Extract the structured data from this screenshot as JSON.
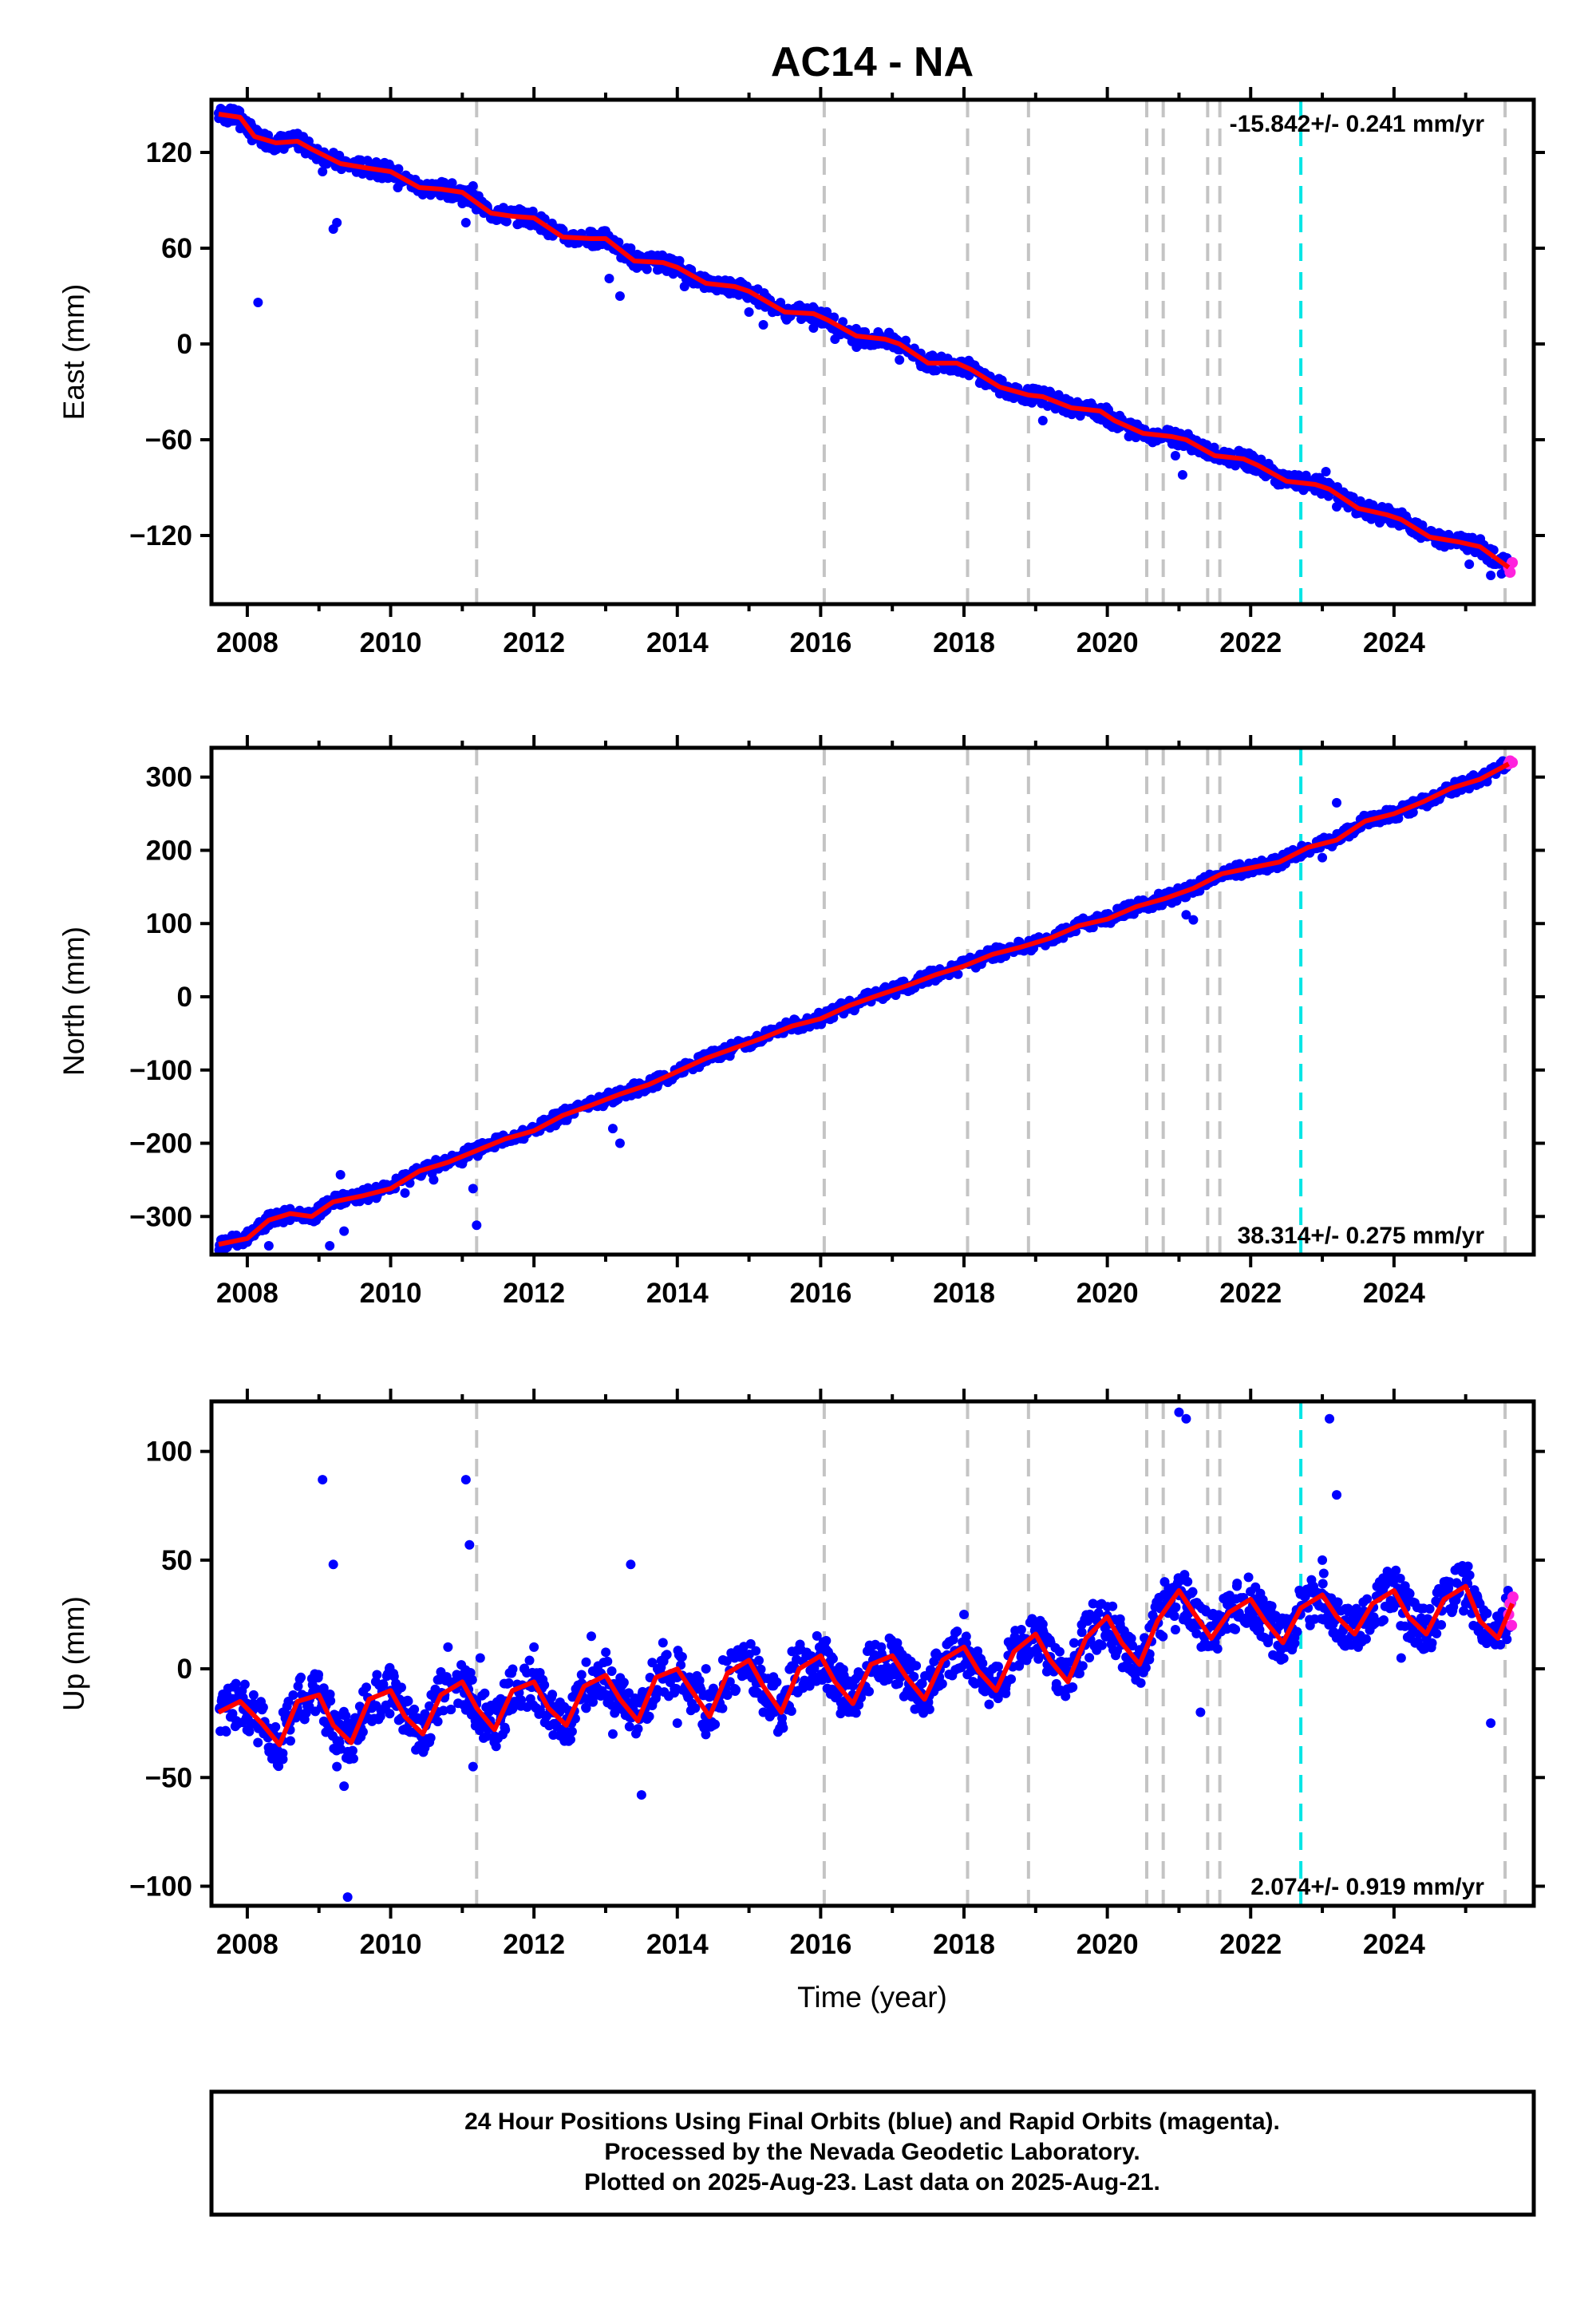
{
  "title": "AC14 - NA",
  "colors": {
    "final_orbits": "#0000ff",
    "rapid_orbits": "#ff22dd",
    "model": "#ff0000",
    "event_line": "#c4c4c4",
    "highlight_event": "#00e5e5"
  },
  "x_axis": {
    "label": "Time (year)",
    "range": [
      2007.5,
      2025.95
    ],
    "ticks": [
      "2008",
      "2010",
      "2012",
      "2014",
      "2016",
      "2018",
      "2020",
      "2022",
      "2024"
    ]
  },
  "event_lines": [
    2011.2,
    2016.05,
    2018.05,
    2018.9,
    2020.55,
    2020.78,
    2021.4,
    2021.57,
    2025.55
  ],
  "highlight_event_line": 2022.7,
  "footer": {
    "line1": "24 Hour Positions Using Final Orbits (blue) and Rapid Orbits (magenta).",
    "line2": "Processed by the Nevada Geodetic Laboratory.",
    "line3": "Plotted on 2025-Aug-23. Last data on 2025-Aug-21."
  },
  "chart_data": [
    {
      "type": "scatter",
      "component": "East",
      "ylabel": "East (mm)",
      "ylim": [
        -163,
        153
      ],
      "yticks": [
        120,
        60,
        0,
        -60,
        -120
      ],
      "yticks_labels": [
        "120",
        "60",
        "0",
        "−60",
        "−120"
      ],
      "rate": "-15.842+/- 0.241 mm/yr",
      "rate_position": "top-right",
      "model_x": [
        2007.6,
        2007.9,
        2008.1,
        2008.4,
        2008.7,
        2008.9,
        2009.3,
        2009.7,
        2010.0,
        2010.4,
        2010.7,
        2011.0,
        2011.4,
        2011.7,
        2012.0,
        2012.4,
        2012.8,
        2013.0,
        2013.4,
        2013.8,
        2014.0,
        2014.4,
        2014.8,
        2015.0,
        2015.5,
        2015.9,
        2016.1,
        2016.5,
        2016.9,
        2017.1,
        2017.5,
        2017.9,
        2018.1,
        2018.5,
        2018.9,
        2019.1,
        2019.5,
        2019.9,
        2020.1,
        2020.5,
        2020.9,
        2021.1,
        2021.5,
        2021.9,
        2022.1,
        2022.5,
        2022.9,
        2023.1,
        2023.5,
        2023.9,
        2024.1,
        2024.5,
        2024.9,
        2025.2,
        2025.6
      ],
      "model_y": [
        144,
        142,
        130,
        126,
        127,
        122,
        113,
        110,
        108,
        98,
        97,
        95,
        82,
        80,
        79,
        67,
        66,
        66,
        52,
        51,
        48,
        38,
        36,
        33,
        20,
        19,
        15,
        5,
        3,
        0,
        -12,
        -12,
        -16,
        -27,
        -32,
        -33,
        -40,
        -42,
        -48,
        -56,
        -58,
        -60,
        -70,
        -72,
        -76,
        -86,
        -88,
        -91,
        -103,
        -107,
        -110,
        -121,
        -124,
        -127,
        -140
      ],
      "final_x": [
        2007.65,
        2007.75,
        2007.9,
        2008.15,
        2008.8,
        2009.05,
        2009.2,
        2009.25,
        2009.5,
        2009.8,
        2010.1,
        2010.4,
        2010.7,
        2011.0,
        2011.05,
        2011.15,
        2011.3,
        2011.5,
        2011.8,
        2012.2,
        2012.6,
        2012.9,
        2013.05,
        2013.2,
        2013.35,
        2013.6,
        2013.9,
        2014.1,
        2014.4,
        2014.7,
        2015.0,
        2015.2,
        2015.5,
        2015.8,
        2015.9,
        2016.2,
        2016.5,
        2016.8,
        2017.1,
        2017.4,
        2017.7,
        2018.0,
        2018.3,
        2018.6,
        2018.9,
        2019.1,
        2019.4,
        2019.7,
        2020.0,
        2020.3,
        2020.6,
        2020.95,
        2021.05,
        2021.2,
        2021.5,
        2021.8,
        2022.6,
        2022.9,
        2023.05,
        2023.2,
        2023.5,
        2023.8,
        2024.1,
        2024.4,
        2024.7,
        2024.9,
        2025.05,
        2025.2,
        2025.35,
        2025.5
      ],
      "final_y": [
        146,
        140,
        135,
        26,
        126,
        108,
        72,
        76,
        113,
        114,
        98,
        100,
        97,
        88,
        76,
        99,
        82,
        84,
        80,
        68,
        68,
        65,
        41,
        30,
        60,
        52,
        50,
        36,
        40,
        34,
        20,
        12,
        19,
        17,
        10,
        3,
        -2,
        0,
        -10,
        -14,
        -12,
        -18,
        -26,
        -30,
        -36,
        -48,
        -42,
        -42,
        -50,
        -58,
        -58,
        -70,
        -82,
        -64,
        -72,
        -75,
        -88,
        -92,
        -80,
        -102,
        -106,
        -112,
        -110,
        -120,
        -124,
        -125,
        -138,
        -128,
        -145,
        -144
      ],
      "rapid_x": [
        2025.6,
        2025.62,
        2025.65
      ],
      "rapid_y": [
        -140,
        -143,
        -137
      ]
    },
    {
      "type": "scatter",
      "component": "North",
      "ylabel": "North (mm)",
      "ylim": [
        -352,
        340
      ],
      "yticks": [
        300,
        200,
        100,
        0,
        -100,
        -200,
        -300
      ],
      "yticks_labels": [
        "300",
        "200",
        "100",
        "0",
        "−100",
        "−200",
        "−300"
      ],
      "rate": "38.314+/- 0.275 mm/yr",
      "rate_position": "bottom-right",
      "model_x": [
        2007.6,
        2008.0,
        2008.3,
        2008.6,
        2008.9,
        2009.2,
        2009.6,
        2010.0,
        2010.4,
        2010.8,
        2011.2,
        2011.6,
        2012.0,
        2012.4,
        2012.8,
        2013.2,
        2013.6,
        2014.0,
        2014.4,
        2014.8,
        2015.2,
        2015.6,
        2016.0,
        2016.4,
        2016.8,
        2017.2,
        2017.6,
        2018.0,
        2018.4,
        2018.8,
        2019.2,
        2019.6,
        2020.0,
        2020.4,
        2020.8,
        2021.2,
        2021.6,
        2022.0,
        2022.4,
        2022.8,
        2023.2,
        2023.6,
        2024.0,
        2024.4,
        2024.8,
        2025.2,
        2025.6
      ],
      "model_y": [
        -338,
        -330,
        -305,
        -296,
        -300,
        -280,
        -272,
        -262,
        -238,
        -226,
        -210,
        -194,
        -183,
        -162,
        -148,
        -133,
        -120,
        -102,
        -84,
        -70,
        -56,
        -40,
        -30,
        -12,
        2,
        15,
        30,
        42,
        58,
        68,
        80,
        97,
        106,
        123,
        134,
        148,
        168,
        176,
        184,
        204,
        214,
        240,
        250,
        266,
        285,
        297,
        318
      ],
      "final_x": [
        2007.7,
        2008.0,
        2008.3,
        2009.15,
        2009.3,
        2009.35,
        2009.8,
        2010.2,
        2010.6,
        2011.0,
        2011.15,
        2011.2,
        2011.4,
        2011.8,
        2012.4,
        2012.8,
        2013.1,
        2013.2,
        2013.5,
        2013.9,
        2014.3,
        2014.8,
        2015.3,
        2015.8,
        2016.0,
        2016.5,
        2017.0,
        2017.5,
        2018.0,
        2018.5,
        2018.9,
        2019.3,
        2019.8,
        2020.2,
        2020.5,
        2020.9,
        2021.1,
        2021.2,
        2021.5,
        2022.8,
        2023.0,
        2023.2,
        2023.6,
        2024.2,
        2024.8,
        2025.2,
        2025.5
      ],
      "final_y": [
        -340,
        -335,
        -340,
        -340,
        -243,
        -320,
        -275,
        -268,
        -250,
        -228,
        -262,
        -312,
        -205,
        -190,
        -155,
        -140,
        -180,
        -200,
        -120,
        -110,
        -90,
        -68,
        -50,
        -35,
        -32,
        -10,
        5,
        20,
        45,
        60,
        72,
        80,
        100,
        110,
        132,
        128,
        112,
        105,
        166,
        205,
        190,
        265,
        240,
        262,
        285,
        300,
        318
      ],
      "rapid_x": [
        2025.6,
        2025.62,
        2025.65
      ],
      "rapid_y": [
        318,
        322,
        320
      ]
    },
    {
      "type": "scatter",
      "component": "Up",
      "ylabel": "Up (mm)",
      "ylim": [
        -109,
        123
      ],
      "yticks": [
        100,
        50,
        0,
        -50,
        -100
      ],
      "yticks_labels": [
        "100",
        "50",
        "0",
        "−50",
        "−100"
      ],
      "rate": "2.074+/- 0.919 mm/yr",
      "rate_position": "bottom-right",
      "model_x": [
        2007.6,
        2007.9,
        2008.2,
        2008.45,
        2008.7,
        2009.0,
        2009.2,
        2009.45,
        2009.7,
        2010.0,
        2010.2,
        2010.45,
        2010.7,
        2011.0,
        2011.2,
        2011.45,
        2011.7,
        2012.0,
        2012.2,
        2012.45,
        2012.7,
        2013.0,
        2013.2,
        2013.45,
        2013.7,
        2014.0,
        2014.2,
        2014.45,
        2014.7,
        2015.0,
        2015.2,
        2015.45,
        2015.7,
        2016.0,
        2016.2,
        2016.45,
        2016.7,
        2017.0,
        2017.2,
        2017.45,
        2017.7,
        2018.0,
        2018.2,
        2018.45,
        2018.7,
        2019.0,
        2019.2,
        2019.45,
        2019.7,
        2020.0,
        2020.2,
        2020.45,
        2020.7,
        2021.0,
        2021.2,
        2021.45,
        2021.7,
        2022.0,
        2022.2,
        2022.45,
        2022.7,
        2023.0,
        2023.2,
        2023.45,
        2023.7,
        2024.0,
        2024.2,
        2024.45,
        2024.7,
        2025.0,
        2025.2,
        2025.45,
        2025.65
      ],
      "model_y": [
        -20,
        -15,
        -25,
        -35,
        -15,
        -12,
        -26,
        -34,
        -14,
        -10,
        -22,
        -30,
        -12,
        -6,
        -18,
        -28,
        -10,
        -6,
        -18,
        -26,
        -8,
        -3,
        -14,
        -24,
        -4,
        0,
        -10,
        -22,
        -2,
        4,
        -8,
        -20,
        0,
        6,
        -6,
        -16,
        2,
        6,
        -4,
        -14,
        4,
        10,
        -1,
        -10,
        8,
        16,
        4,
        -6,
        14,
        24,
        12,
        2,
        22,
        36,
        26,
        14,
        26,
        32,
        22,
        12,
        28,
        34,
        24,
        16,
        30,
        36,
        24,
        16,
        32,
        38,
        22,
        14,
        30
      ],
      "final_x": [
        2007.7,
        2008.0,
        2008.5,
        2009.05,
        2009.2,
        2009.25,
        2009.35,
        2009.4,
        2009.6,
        2010.0,
        2010.5,
        2010.8,
        2011.05,
        2011.1,
        2011.15,
        2011.25,
        2011.6,
        2012.0,
        2012.5,
        2012.8,
        2013.1,
        2013.35,
        2013.5,
        2013.8,
        2014.0,
        2014.4,
        2014.8,
        2015.2,
        2015.6,
        2016.0,
        2016.3,
        2016.7,
        2017.1,
        2017.5,
        2018.0,
        2018.4,
        2018.8,
        2019.1,
        2019.5,
        2019.8,
        2020.1,
        2020.5,
        2020.8,
        2020.95,
        2021.0,
        2021.1,
        2021.3,
        2021.5,
        2021.7,
        2022.5,
        2022.8,
        2023.0,
        2023.1,
        2023.2,
        2023.5,
        2023.8,
        2024.1,
        2024.4,
        2024.7,
        2025.0,
        2025.2,
        2025.35,
        2025.5
      ],
      "final_y": [
        -18,
        -16,
        -20,
        87,
        48,
        -45,
        -54,
        -105,
        -20,
        -10,
        -25,
        10,
        87,
        57,
        -45,
        5,
        -28,
        10,
        -20,
        15,
        -30,
        48,
        -58,
        12,
        -25,
        0,
        5,
        -20,
        8,
        3,
        -18,
        10,
        0,
        -15,
        25,
        0,
        18,
        10,
        -2,
        30,
        15,
        0,
        40,
        18,
        118,
        115,
        -20,
        12,
        30,
        10,
        28,
        50,
        115,
        80,
        10,
        40,
        5,
        20,
        40,
        30,
        20,
        -25,
        25
      ],
      "rapid_x": [
        2025.6,
        2025.62,
        2025.64,
        2025.66
      ],
      "rapid_y": [
        25,
        30,
        20,
        33
      ]
    }
  ]
}
